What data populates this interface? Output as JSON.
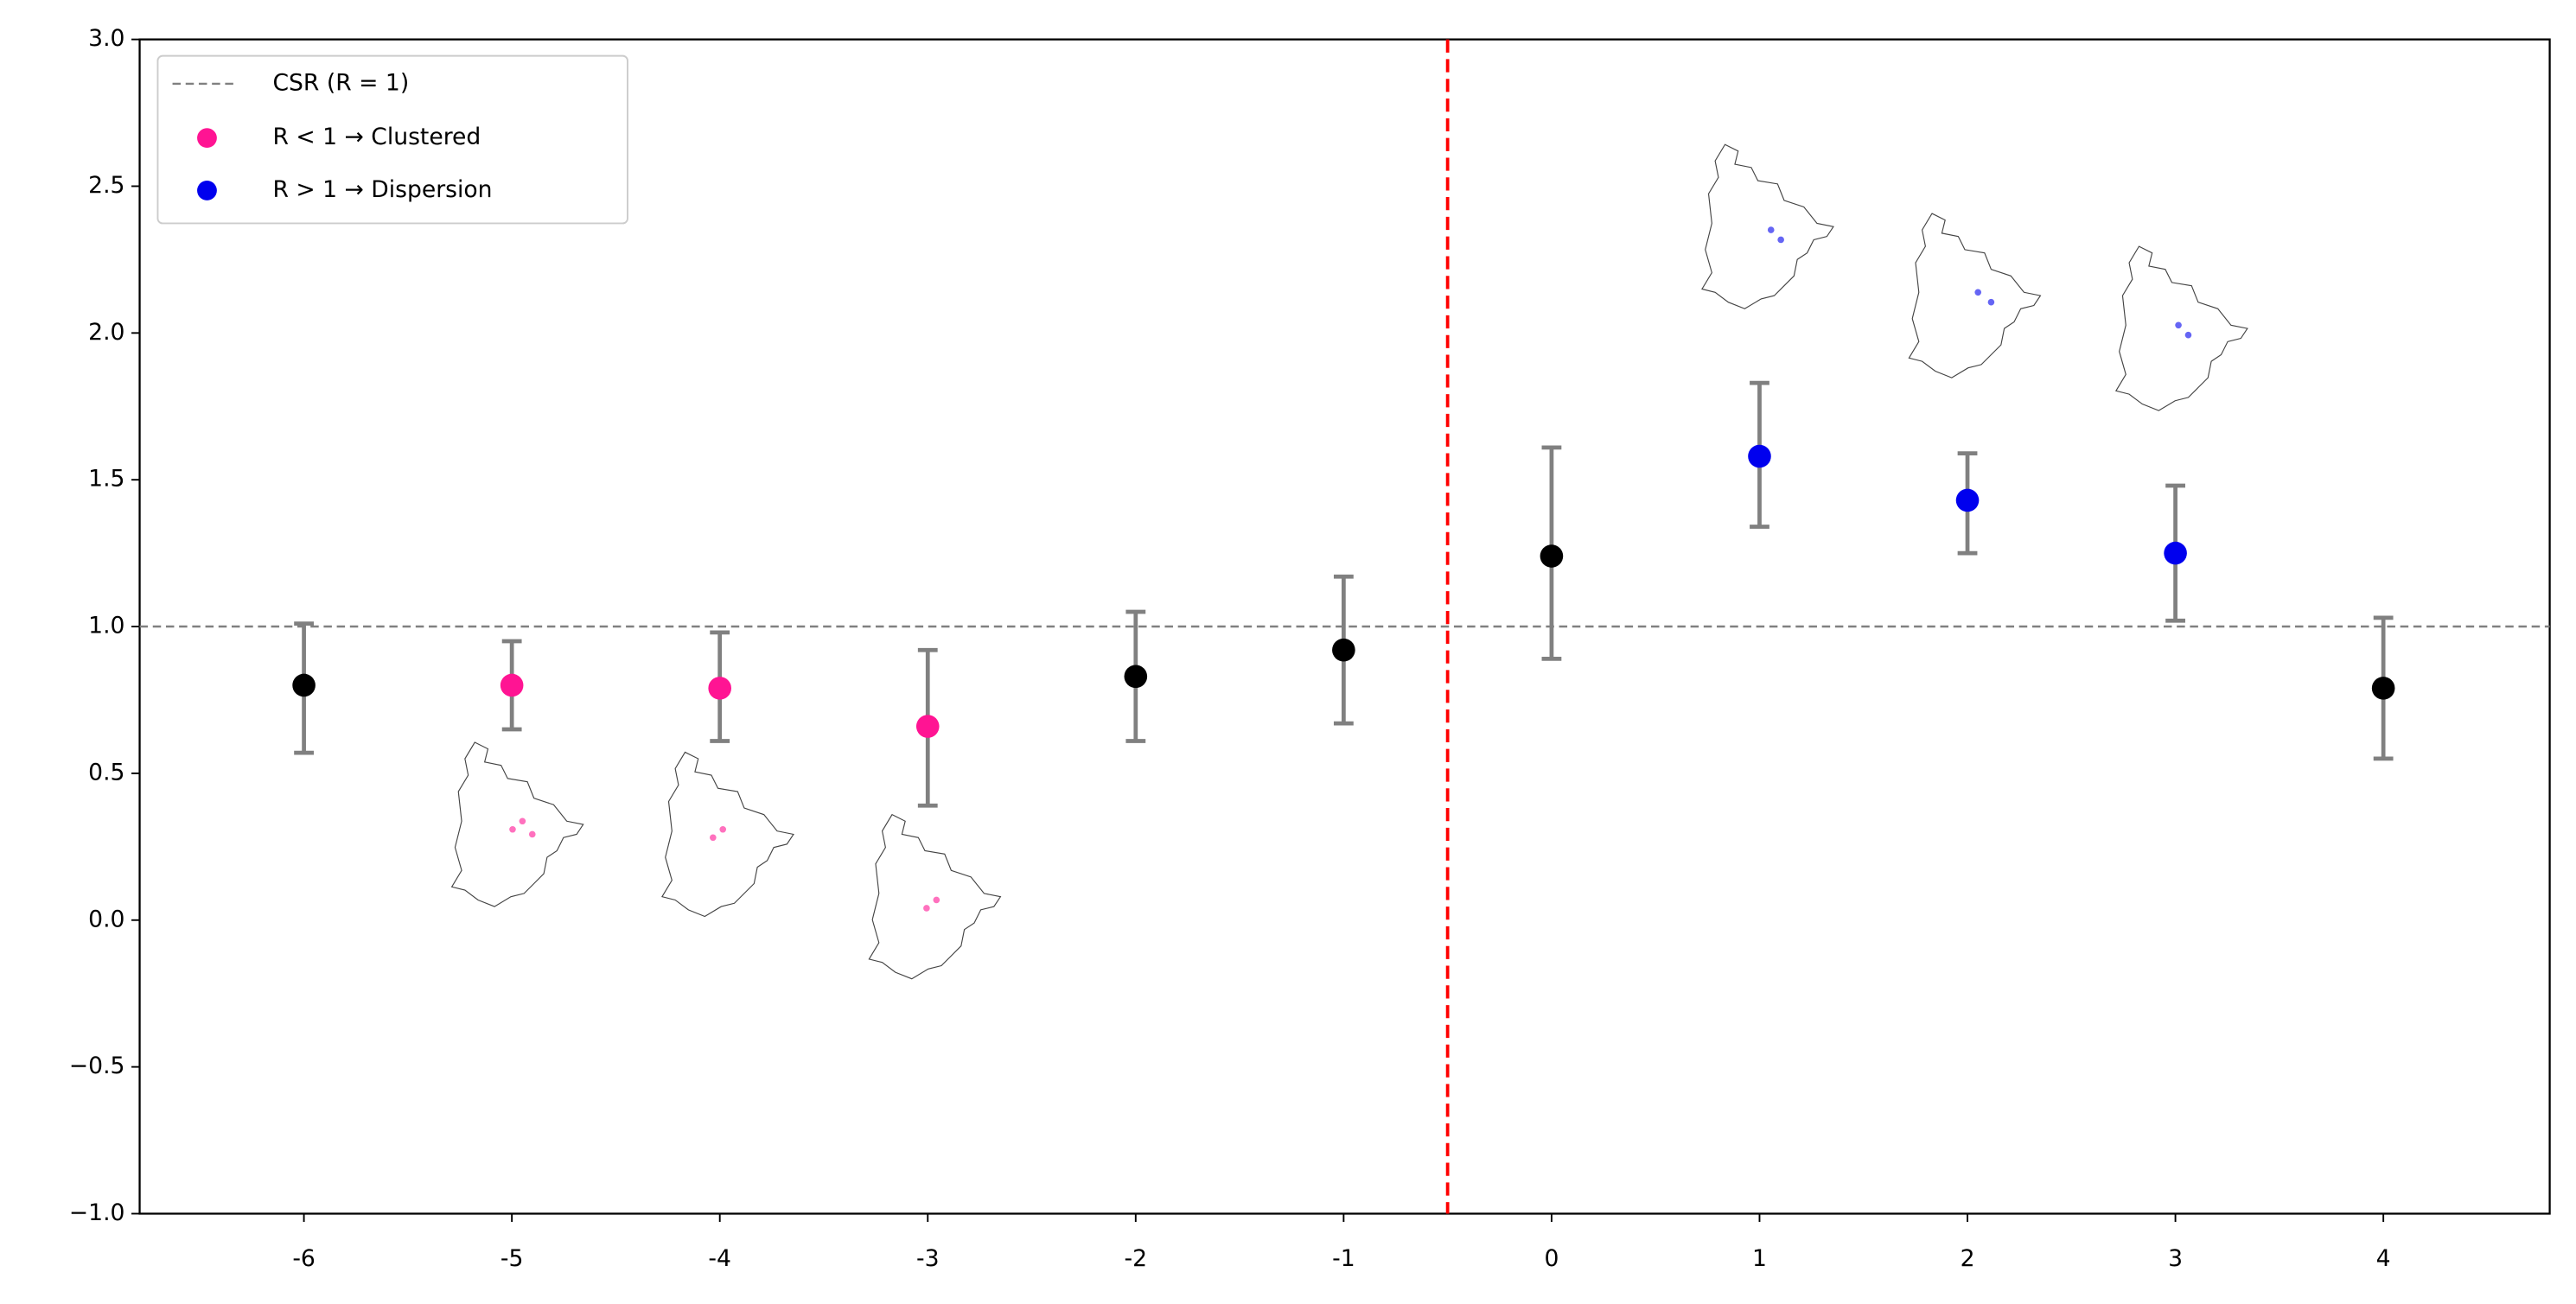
{
  "chart_data": {
    "type": "errorbar",
    "x": [
      -6,
      -5,
      -4,
      -3,
      -2,
      -1,
      0,
      1,
      2,
      3,
      4
    ],
    "values": [
      0.8,
      0.8,
      0.79,
      0.66,
      0.83,
      0.92,
      1.24,
      1.58,
      1.43,
      1.25,
      0.79
    ],
    "lower": [
      0.57,
      0.65,
      0.61,
      0.39,
      0.61,
      0.67,
      0.89,
      1.34,
      1.25,
      1.02,
      0.55
    ],
    "upper": [
      1.01,
      0.95,
      0.98,
      0.92,
      1.05,
      1.17,
      1.61,
      1.83,
      1.59,
      1.48,
      1.03
    ],
    "colors": [
      "#000000",
      "#ff1493",
      "#ff1493",
      "#ff1493",
      "#000000",
      "#000000",
      "#000000",
      "#0000ee",
      "#0000ee",
      "#0000ee",
      "#000000"
    ],
    "error_color": "#808080",
    "xlim": [
      -6.79,
      4.8
    ],
    "xticks": [
      -6,
      -5,
      -4,
      -3,
      -2,
      -1,
      0,
      1,
      2,
      3,
      4
    ],
    "ylim": [
      -1.0,
      3.0
    ],
    "yticks": [
      {
        "value": -1.0,
        "label": "−1.0"
      },
      {
        "value": -0.5,
        "label": "−0.5"
      },
      {
        "value": 0.0,
        "label": "0.0"
      },
      {
        "value": 0.5,
        "label": "0.5"
      },
      {
        "value": 1.0,
        "label": "1.0"
      },
      {
        "value": 1.5,
        "label": "1.5"
      },
      {
        "value": 2.0,
        "label": "2.0"
      },
      {
        "value": 2.5,
        "label": "2.5"
      },
      {
        "value": 3.0,
        "label": "3.0"
      }
    ],
    "reference_line": {
      "name": "CSR (R = 1)",
      "value": 1,
      "color": "#808080"
    },
    "split_line": {
      "value": -0.5,
      "color": "#ff0000"
    },
    "classes": [
      {
        "name": "R < 1 → Clustered",
        "color": "#ff1493"
      },
      {
        "name": "R > 1 → Dispersion",
        "color": "#0000ee"
      }
    ],
    "legend": "upper left"
  }
}
